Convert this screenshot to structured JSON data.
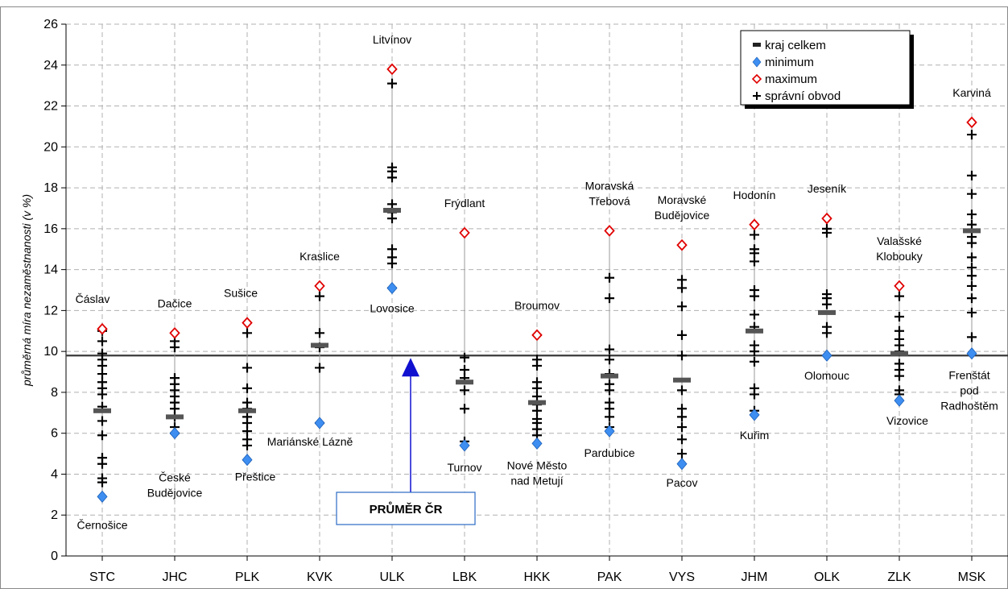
{
  "chart_data": {
    "type": "scatter",
    "title": "",
    "xlabel": "",
    "ylabel": "průměrná míra nezaměstnanosti (v %)",
    "ylim": [
      0,
      26
    ],
    "yticks": [
      0,
      2,
      4,
      6,
      8,
      10,
      12,
      14,
      16,
      18,
      20,
      22,
      24,
      26
    ],
    "grid": true,
    "legend_position": "top-right",
    "legend": [
      {
        "key": "region",
        "label": "kraj celkem"
      },
      {
        "key": "min",
        "label": "minimum"
      },
      {
        "key": "max",
        "label": "maximum"
      },
      {
        "key": "district",
        "label": "správní obvod"
      }
    ],
    "national_average": 9.8,
    "national_average_label": "PRŮMĚR ČR",
    "colors": {
      "minimum": "#3d8ef0",
      "maximum": "#e00000",
      "region": "#555555",
      "district": "#000000",
      "callout": "#1010d0"
    },
    "categories": [
      "STC",
      "JHC",
      "PLK",
      "KVK",
      "ULK",
      "LBK",
      "HKK",
      "PAK",
      "VYS",
      "JHM",
      "OLK",
      "ZLK",
      "MSK"
    ],
    "regions": [
      {
        "code": "STC",
        "region": 7.1,
        "min": 2.9,
        "min_label": "Černošice",
        "max": 11.1,
        "max_label": "Čáslav",
        "districts": [
          3.6,
          3.8,
          4.5,
          4.8,
          5.9,
          6.6,
          7.3,
          7.9,
          8.2,
          8.5,
          8.9,
          9.3,
          9.6,
          9.9,
          10.5,
          11.0
        ]
      },
      {
        "code": "JHC",
        "region": 6.8,
        "min": 6.0,
        "min_label": "České Budějovice",
        "max": 10.9,
        "max_label": "Dačice",
        "districts": [
          6.0,
          6.3,
          6.8,
          7.2,
          7.5,
          7.8,
          8.1,
          8.4,
          8.7,
          10.2,
          10.5
        ]
      },
      {
        "code": "PLK",
        "region": 7.1,
        "min": 4.7,
        "min_label": "Přeštice",
        "max": 11.4,
        "max_label": "Sušice",
        "districts": [
          5.4,
          5.7,
          6.1,
          6.5,
          6.8,
          7.2,
          7.5,
          8.2,
          9.2,
          10.9
        ]
      },
      {
        "code": "KVK",
        "region": 10.3,
        "min": 6.5,
        "min_label": "Mariánské Lázně",
        "max": 13.2,
        "max_label": "Kraslice",
        "districts": [
          6.5,
          9.2,
          10.2,
          10.9,
          12.7
        ]
      },
      {
        "code": "ULK",
        "region": 16.9,
        "min": 13.1,
        "min_label": "Lovosice",
        "max": 23.8,
        "max_label": "Litvínov",
        "districts": [
          13.1,
          14.3,
          14.6,
          15.0,
          16.5,
          16.8,
          17.2,
          18.5,
          18.8,
          19.0,
          23.1
        ]
      },
      {
        "code": "LBK",
        "region": 8.5,
        "min": 5.4,
        "min_label": "Turnov",
        "max": 15.8,
        "max_label": "Frýdlant",
        "districts": [
          5.6,
          7.2,
          8.1,
          8.7,
          9.1,
          9.7
        ]
      },
      {
        "code": "HKK",
        "region": 7.5,
        "min": 5.5,
        "min_label": "Nové Město nad Metují",
        "max": 10.8,
        "max_label": "Broumov",
        "districts": [
          5.9,
          6.2,
          6.5,
          6.7,
          7.1,
          7.4,
          7.8,
          8.2,
          8.5,
          9.3,
          9.6,
          10.8
        ]
      },
      {
        "code": "PAK",
        "region": 8.8,
        "min": 6.1,
        "min_label": "Pardubice",
        "max": 15.9,
        "max_label": "Moravská Třebová",
        "districts": [
          6.3,
          6.8,
          7.2,
          7.5,
          8.1,
          8.4,
          8.9,
          9.6,
          10.1,
          12.6,
          13.6
        ]
      },
      {
        "code": "VYS",
        "region": 8.6,
        "min": 4.5,
        "min_label": "Pacov",
        "max": 15.2,
        "max_label": "Moravské Budějovice",
        "districts": [
          5.0,
          5.7,
          6.3,
          6.8,
          7.2,
          8.1,
          9.8,
          10.8,
          12.2,
          13.1,
          13.5
        ]
      },
      {
        "code": "JHM",
        "region": 11.0,
        "min": 6.9,
        "min_label": "Kuřim",
        "max": 16.2,
        "max_label": "Hodonín",
        "districts": [
          7.1,
          7.9,
          8.2,
          9.5,
          10.0,
          10.3,
          11.2,
          11.8,
          12.7,
          13.0,
          14.4,
          14.8,
          15.0,
          15.7
        ]
      },
      {
        "code": "OLK",
        "region": 11.9,
        "min": 9.8,
        "min_label": "Olomouc",
        "max": 16.5,
        "max_label": "Jeseník",
        "districts": [
          10.9,
          11.2,
          12.3,
          12.6,
          12.8,
          15.8,
          16.0
        ]
      },
      {
        "code": "ZLK",
        "region": 9.9,
        "min": 7.6,
        "min_label": "Vizovice",
        "max": 13.2,
        "max_label": "Valašské Klobouky",
        "districts": [
          7.9,
          8.1,
          8.8,
          9.1,
          9.4,
          10.0,
          10.3,
          10.6,
          11.0,
          11.7,
          12.7
        ]
      },
      {
        "code": "MSK",
        "region": 15.9,
        "min": 9.9,
        "min_label": "Frenštát pod Radhoštěm",
        "max": 21.2,
        "max_label": "Karviná",
        "districts": [
          10.7,
          11.9,
          12.6,
          13.2,
          13.7,
          14.1,
          14.6,
          15.3,
          15.6,
          16.2,
          16.7,
          17.7,
          18.6,
          20.6
        ]
      }
    ]
  }
}
